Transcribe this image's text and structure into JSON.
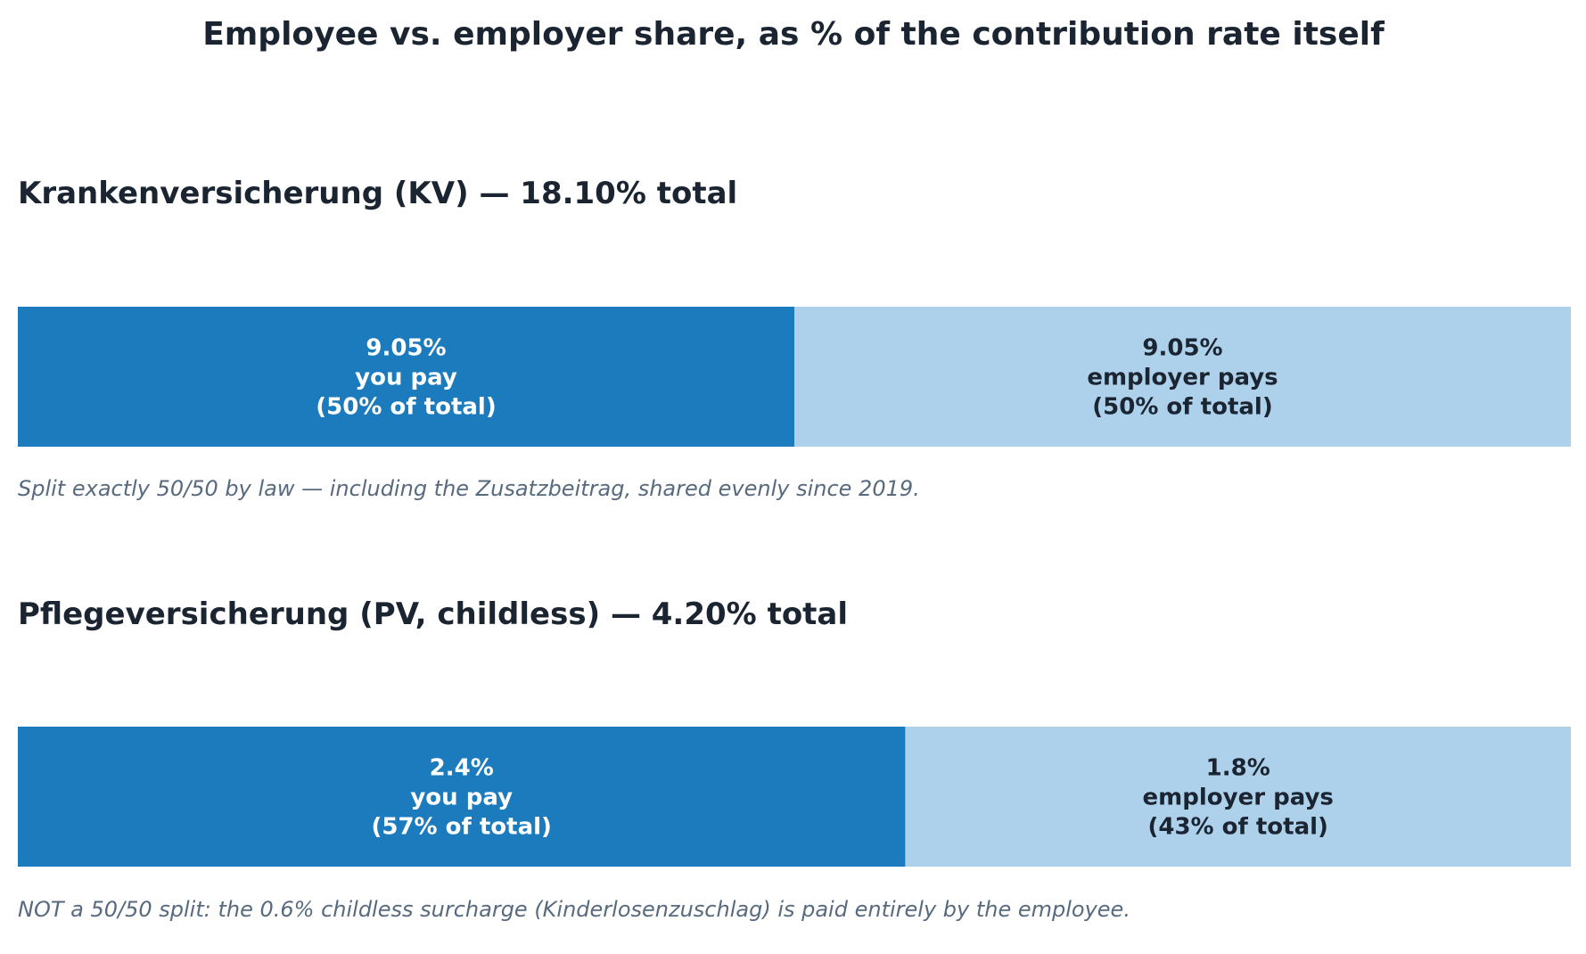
{
  "chart_data": {
    "type": "bar",
    "stacked": true,
    "orientation": "horizontal",
    "title": "Employee vs. employer share, as % of the contribution rate itself",
    "colors": {
      "title": "#1b2431",
      "employee": "#1b7bbd",
      "employer": "#aed1eb",
      "employee_text": "#ffffff",
      "employer_text": "#1b2431",
      "note": "#586a7e",
      "section": "#1b2431"
    },
    "panels": [
      {
        "heading": "Krankenversicherung (KV) — 18.10% total",
        "segments": [
          {
            "role": "employee",
            "value": 9.05,
            "share": 50,
            "lines": [
              "9.05%",
              "you pay",
              "(50% of total)"
            ]
          },
          {
            "role": "employer",
            "value": 9.05,
            "share": 50,
            "lines": [
              "9.05%",
              "employer pays",
              "(50% of total)"
            ]
          }
        ],
        "note": "Split exactly 50/50 by law — including the Zusatzbeitrag, shared evenly since 2019."
      },
      {
        "heading": "Pflegeversicherung (PV, childless) — 4.20% total",
        "segments": [
          {
            "role": "employee",
            "value": 2.4,
            "share": 57,
            "lines": [
              "2.4%",
              "you pay",
              "(57% of total)"
            ]
          },
          {
            "role": "employer",
            "value": 1.8,
            "share": 43,
            "lines": [
              "1.8%",
              "employer pays",
              "(43% of total)"
            ]
          }
        ],
        "note": "NOT a 50/50 split: the 0.6% childless surcharge (Kinderlosenzuschlag) is paid entirely by the employee."
      }
    ]
  }
}
